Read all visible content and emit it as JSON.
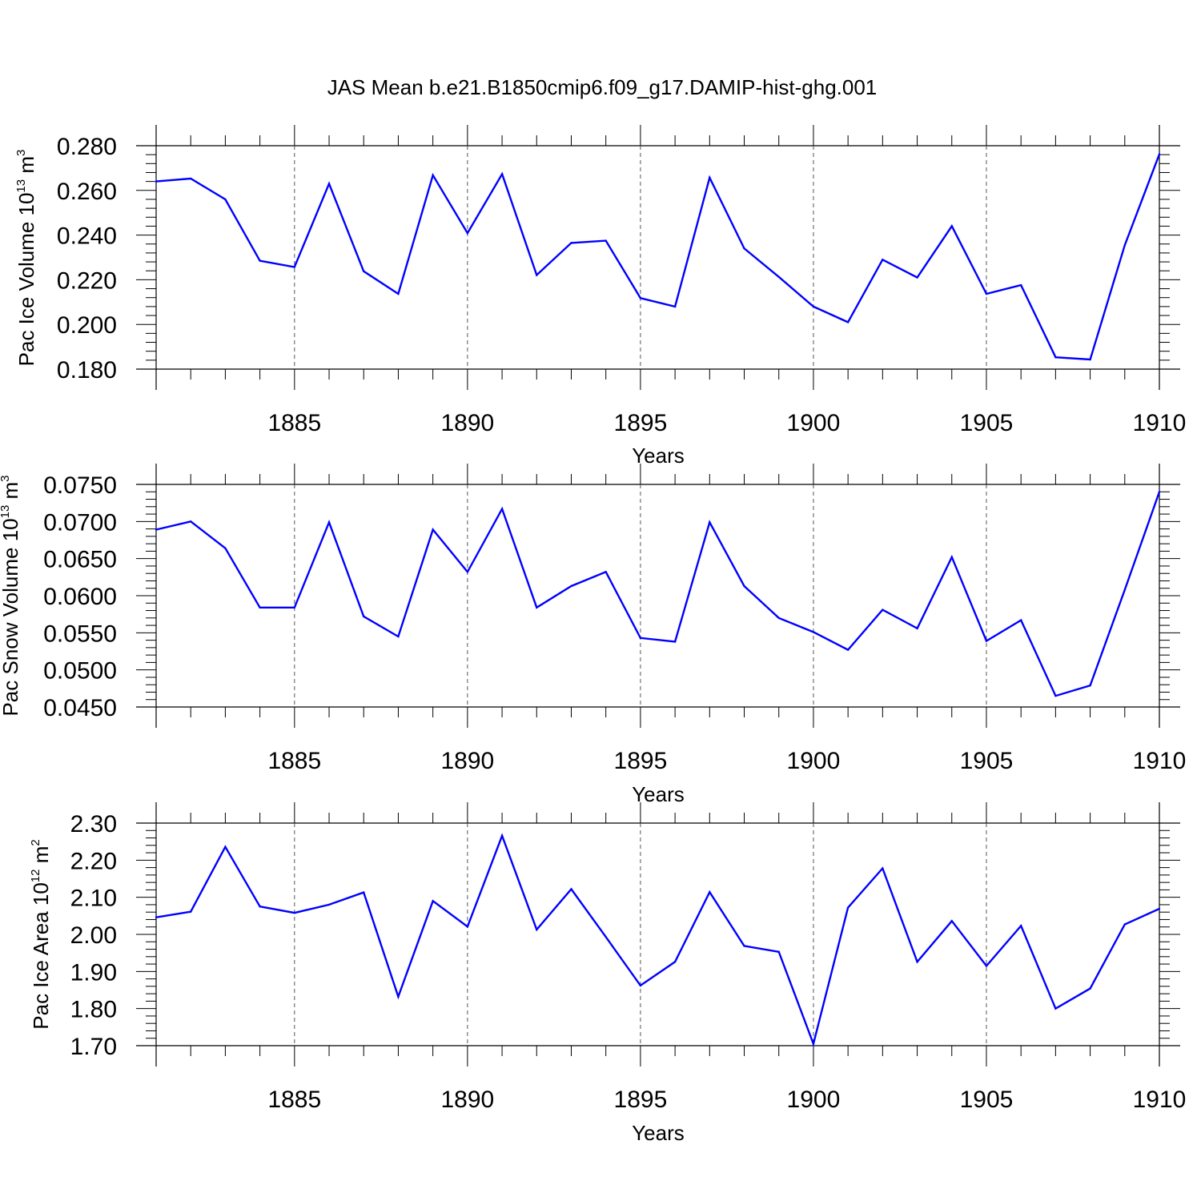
{
  "figure": {
    "title": "JAS Mean b.e21.B1850cmip6.f09_g17.DAMIP-hist-ghg.001"
  },
  "chart_data": [
    {
      "type": "line",
      "title": "JAS Mean b.e21.B1850cmip6.f09_g17.DAMIP-hist-ghg.001",
      "xlabel": "Years",
      "ylabel": {
        "text": "Pac Ice Volume 10",
        "exp": "13",
        "unit": " m",
        "unitExp": "3"
      },
      "xlim": [
        1881,
        1910
      ],
      "ylim": [
        0.18,
        0.28
      ],
      "xticks": [
        "1885",
        "1890",
        "1895",
        "1900",
        "1905",
        "1910"
      ],
      "yticks": [
        "0.180",
        "0.200",
        "0.220",
        "0.240",
        "0.260",
        "0.280"
      ],
      "ytick_values": [
        0.18,
        0.2,
        0.22,
        0.24,
        0.26,
        0.28
      ],
      "grid": "dashed vertical at major x ticks",
      "color": "#0000ff",
      "x": [
        1881,
        1882,
        1883,
        1884,
        1885,
        1886,
        1887,
        1888,
        1889,
        1890,
        1891,
        1892,
        1893,
        1894,
        1895,
        1896,
        1897,
        1898,
        1899,
        1900,
        1901,
        1902,
        1903,
        1904,
        1905,
        1906,
        1907,
        1908,
        1909,
        1910
      ],
      "y": [
        0.264,
        0.2653,
        0.256,
        0.2285,
        0.2257,
        0.263,
        0.2238,
        0.2137,
        0.2668,
        0.2409,
        0.2673,
        0.2221,
        0.2365,
        0.2375,
        0.2118,
        0.208,
        0.2657,
        0.234,
        0.2213,
        0.208,
        0.201,
        0.229,
        0.221,
        0.244,
        0.2137,
        0.2176,
        0.1853,
        0.1843,
        0.2355,
        0.2762
      ]
    },
    {
      "type": "line",
      "xlabel": "Years",
      "ylabel": {
        "text": "Pac Snow Volume 10",
        "exp": "13",
        "unit": " m",
        "unitExp": "3"
      },
      "xlim": [
        1881,
        1910
      ],
      "ylim": [
        0.045,
        0.075
      ],
      "xticks": [
        "1885",
        "1890",
        "1895",
        "1900",
        "1905",
        "1910"
      ],
      "yticks": [
        "0.0450",
        "0.0500",
        "0.0550",
        "0.0600",
        "0.0650",
        "0.0700",
        "0.0750"
      ],
      "ytick_values": [
        0.045,
        0.05,
        0.055,
        0.06,
        0.065,
        0.07,
        0.075
      ],
      "grid": "dashed vertical at major x ticks",
      "color": "#0000ff",
      "x": [
        1881,
        1882,
        1883,
        1884,
        1885,
        1886,
        1887,
        1888,
        1889,
        1890,
        1891,
        1892,
        1893,
        1894,
        1895,
        1896,
        1897,
        1898,
        1899,
        1900,
        1901,
        1902,
        1903,
        1904,
        1905,
        1906,
        1907,
        1908,
        1909,
        1910
      ],
      "y": [
        0.0689,
        0.07,
        0.0664,
        0.0584,
        0.0584,
        0.0699,
        0.0572,
        0.0545,
        0.0689,
        0.0632,
        0.0717,
        0.0584,
        0.0613,
        0.0632,
        0.0543,
        0.0538,
        0.0699,
        0.0613,
        0.057,
        0.0551,
        0.0527,
        0.0581,
        0.0556,
        0.0652,
        0.0539,
        0.0567,
        0.0465,
        0.0479,
        0.0608,
        0.074
      ]
    },
    {
      "type": "line",
      "xlabel": "Years",
      "ylabel": {
        "text": "Pac Ice Area 10",
        "exp": "12",
        "unit": " m",
        "unitExp": "2"
      },
      "xlim": [
        1881,
        1910
      ],
      "ylim": [
        1.7,
        2.3
      ],
      "xticks": [
        "1885",
        "1890",
        "1895",
        "1900",
        "1905",
        "1910"
      ],
      "yticks": [
        "1.70",
        "1.80",
        "1.90",
        "2.00",
        "2.10",
        "2.20",
        "2.30"
      ],
      "ytick_values": [
        1.7,
        1.8,
        1.9,
        2.0,
        2.1,
        2.2,
        2.3
      ],
      "grid": "dashed vertical at major x ticks",
      "color": "#0000ff",
      "x": [
        1881,
        1882,
        1883,
        1884,
        1885,
        1886,
        1887,
        1888,
        1889,
        1890,
        1891,
        1892,
        1893,
        1894,
        1895,
        1896,
        1897,
        1898,
        1899,
        1900,
        1901,
        1902,
        1903,
        1904,
        1905,
        1906,
        1907,
        1908,
        1909,
        1910
      ],
      "y": [
        2.046,
        2.061,
        2.236,
        2.075,
        2.058,
        2.08,
        2.113,
        1.832,
        2.09,
        2.021,
        2.266,
        2.013,
        2.122,
        1.993,
        1.862,
        1.926,
        2.114,
        1.969,
        1.953,
        1.705,
        2.072,
        2.178,
        1.926,
        2.036,
        1.915,
        2.023,
        1.8,
        1.854,
        2.027,
        2.069
      ]
    }
  ]
}
